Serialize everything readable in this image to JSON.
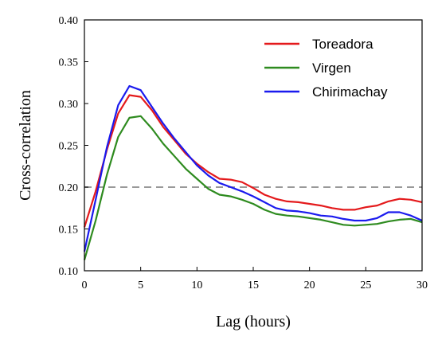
{
  "chart_data": {
    "type": "line",
    "xlabel": "Lag (hours)",
    "ylabel": "Cross-correlation",
    "xlim": [
      0,
      30
    ],
    "ylim": [
      0.1,
      0.4
    ],
    "xticks": [
      0,
      5,
      10,
      15,
      20,
      25,
      30
    ],
    "xtick_labels": [
      "0",
      "5",
      "10",
      "15",
      "20",
      "25",
      "30"
    ],
    "yticks": [
      0.1,
      0.15,
      0.2,
      0.25,
      0.3,
      0.35,
      0.4
    ],
    "ytick_labels": [
      "0.10",
      "0.15",
      "0.20",
      "0.25",
      "0.30",
      "0.35",
      "0.40"
    ],
    "grid": false,
    "legend_position": "top-right",
    "reference_line": {
      "y": 0.2,
      "style": "dashed",
      "color": "#999999"
    },
    "x": [
      0,
      1,
      2,
      3,
      4,
      5,
      6,
      7,
      8,
      9,
      10,
      11,
      12,
      13,
      14,
      15,
      16,
      17,
      18,
      19,
      20,
      21,
      22,
      23,
      24,
      25,
      26,
      27,
      28,
      29,
      30
    ],
    "series": [
      {
        "name": "Toreadora",
        "color": "#e41a1c",
        "values": [
          0.152,
          0.195,
          0.245,
          0.288,
          0.31,
          0.308,
          0.292,
          0.272,
          0.256,
          0.24,
          0.228,
          0.218,
          0.21,
          0.209,
          0.206,
          0.199,
          0.191,
          0.186,
          0.183,
          0.182,
          0.18,
          0.178,
          0.175,
          0.173,
          0.173,
          0.176,
          0.178,
          0.183,
          0.186,
          0.185,
          0.182
        ]
      },
      {
        "name": "Virgen",
        "color": "#2e8b1f",
        "values": [
          0.113,
          0.16,
          0.215,
          0.26,
          0.283,
          0.285,
          0.27,
          0.252,
          0.237,
          0.222,
          0.21,
          0.198,
          0.191,
          0.189,
          0.185,
          0.18,
          0.173,
          0.168,
          0.166,
          0.165,
          0.163,
          0.161,
          0.158,
          0.155,
          0.154,
          0.155,
          0.156,
          0.159,
          0.161,
          0.162,
          0.158
        ]
      },
      {
        "name": "Chirimachay",
        "color": "#1a1aee",
        "values": [
          0.123,
          0.185,
          0.248,
          0.298,
          0.321,
          0.316,
          0.296,
          0.276,
          0.258,
          0.242,
          0.226,
          0.214,
          0.205,
          0.2,
          0.195,
          0.189,
          0.182,
          0.175,
          0.172,
          0.171,
          0.169,
          0.166,
          0.165,
          0.162,
          0.16,
          0.16,
          0.163,
          0.17,
          0.17,
          0.166,
          0.16
        ]
      }
    ]
  }
}
